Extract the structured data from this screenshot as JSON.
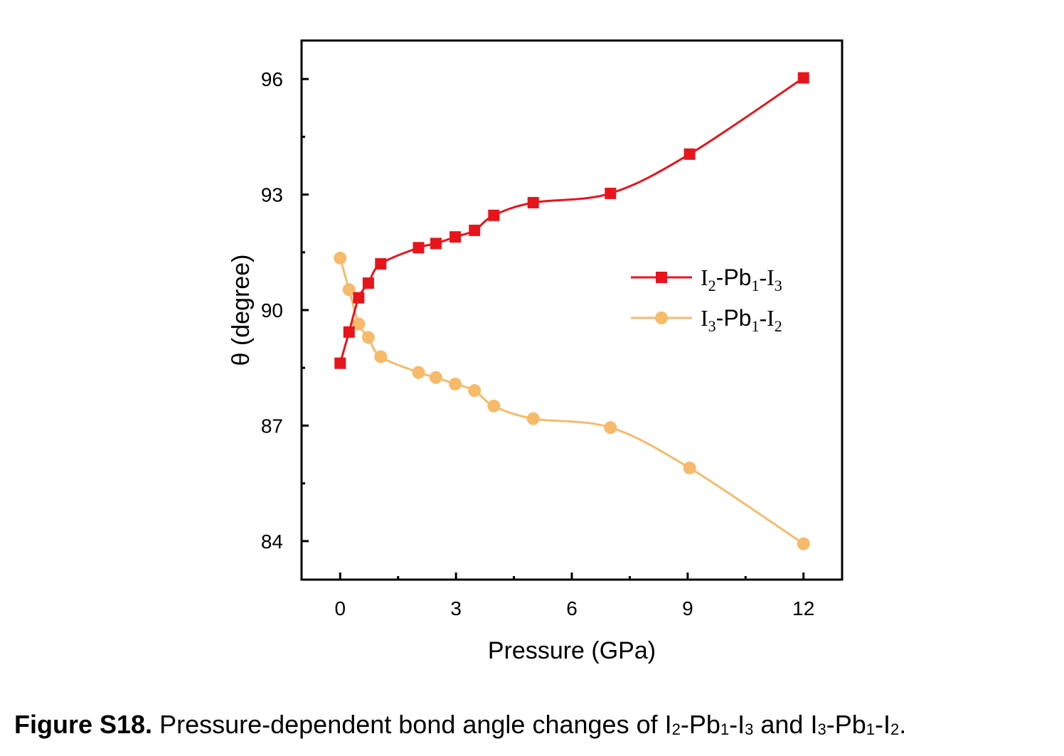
{
  "chart_data": {
    "type": "line",
    "xlabel": "Pressure (GPa)",
    "ylabel": "θ (degree)",
    "xlim": [
      -1,
      13
    ],
    "ylim": [
      83,
      97
    ],
    "xticks": [
      0,
      3,
      6,
      9,
      12
    ],
    "yticks": [
      84,
      87,
      90,
      93,
      96
    ],
    "grid": false,
    "legend_position": "right-center",
    "series": [
      {
        "name": "I2-Pb1-I3",
        "legend_parts": [
          "I",
          "2",
          "-Pb",
          "1",
          "-I",
          "3"
        ],
        "color": "#e8141c",
        "marker": "square",
        "x": [
          0,
          0.23,
          0.48,
          0.73,
          1.05,
          2.03,
          2.48,
          2.98,
          3.48,
          3.98,
          5.0,
          7.0,
          9.05,
          12.0
        ],
        "y": [
          88.62,
          89.43,
          90.32,
          90.7,
          91.2,
          91.62,
          91.73,
          91.9,
          92.07,
          92.46,
          92.79,
          93.03,
          94.05,
          96.03
        ]
      },
      {
        "name": "I3-Pb1-I2",
        "legend_parts": [
          "I",
          "3",
          "-Pb",
          "1",
          "-I",
          "2"
        ],
        "color": "#f7ba6a",
        "marker": "circle",
        "x": [
          0,
          0.23,
          0.48,
          0.73,
          1.05,
          2.03,
          2.48,
          2.98,
          3.48,
          3.98,
          5.0,
          7.0,
          9.05,
          12.0
        ],
        "y": [
          91.35,
          90.53,
          89.64,
          89.29,
          88.79,
          88.38,
          88.25,
          88.08,
          87.91,
          87.51,
          87.18,
          86.95,
          85.9,
          83.93
        ]
      }
    ]
  },
  "caption": {
    "label": "Figure S18.",
    "text_before": " Pressure-dependent bond angle changes of I",
    "sub1": "2",
    "text_2": "-Pb",
    "sub2": "1",
    "text_3": "-I",
    "sub3": "3",
    "text_4": " and I",
    "sub4": "3",
    "text_5": "-Pb",
    "sub5": "1",
    "text_6": "-I",
    "sub6": "2",
    "text_end": "."
  }
}
